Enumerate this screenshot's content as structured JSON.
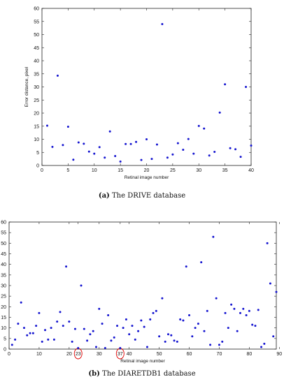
{
  "captions": [
    {
      "label": "(a)",
      "text": "The DRIVE database"
    },
    {
      "label": "(b)",
      "text": "The DIARETDB1 database"
    }
  ],
  "chart_data": [
    {
      "type": "scatter",
      "xlabel": "Retinal image number",
      "ylabel": "Error distance, pixel",
      "xlim": [
        0,
        40
      ],
      "ylim": [
        0,
        60
      ],
      "xticks": [
        0,
        5,
        10,
        15,
        20,
        25,
        30,
        35,
        40
      ],
      "yticks": [
        0,
        5,
        10,
        15,
        20,
        25,
        30,
        35,
        40,
        45,
        50,
        55,
        60
      ],
      "grid": false,
      "marker_color": "#1515d0",
      "x": [
        1,
        2,
        3,
        4,
        5,
        6,
        7,
        8,
        9,
        10,
        11,
        12,
        13,
        14,
        15,
        16,
        17,
        18,
        19,
        20,
        21,
        22,
        23,
        24,
        25,
        26,
        27,
        28,
        29,
        30,
        31,
        32,
        33,
        34,
        35,
        36,
        37,
        38,
        39,
        40
      ],
      "y": [
        15.2,
        7.1,
        34.3,
        7.8,
        14.8,
        2.2,
        8.8,
        8.3,
        5.3,
        4.5,
        7.0,
        3.0,
        13.0,
        3.6,
        1.5,
        8.2,
        8.2,
        9.0,
        2.1,
        10.0,
        2.5,
        8.0,
        54.0,
        3.0,
        4.2,
        8.5,
        6.0,
        10.1,
        4.5,
        15.1,
        14.1,
        3.8,
        5.2,
        20.2,
        31.0,
        6.6,
        6.2,
        3.3,
        30.0,
        7.6
      ]
    },
    {
      "type": "scatter",
      "xlabel": "Retinal image number",
      "ylabel": "Error distance, pixel",
      "xlim": [
        0,
        89
      ],
      "ylim": [
        0,
        60
      ],
      "xticks": [
        0,
        10,
        20,
        23,
        30,
        37,
        40,
        50,
        60,
        70,
        80,
        90
      ],
      "yticks": [
        0,
        5,
        10,
        15,
        20,
        25,
        30,
        35,
        40,
        45,
        50,
        55,
        60
      ],
      "highlighted_ticks": [
        23,
        37
      ],
      "highlight_color": "#e00000",
      "grid": false,
      "marker_color": "#1515d0",
      "x": [
        1,
        2,
        3,
        4,
        5,
        6,
        7,
        8,
        9,
        10,
        11,
        12,
        13,
        14,
        15,
        16,
        17,
        18,
        19,
        20,
        21,
        22,
        23,
        24,
        25,
        26,
        27,
        28,
        29,
        30,
        31,
        32,
        33,
        34,
        35,
        36,
        37,
        38,
        39,
        40,
        41,
        42,
        43,
        44,
        45,
        46,
        47,
        48,
        49,
        50,
        51,
        52,
        53,
        54,
        55,
        56,
        57,
        58,
        59,
        60,
        61,
        62,
        63,
        64,
        65,
        66,
        67,
        68,
        69,
        70,
        71,
        72,
        73,
        74,
        75,
        76,
        77,
        78,
        79,
        80,
        81,
        82,
        83,
        84,
        85,
        86,
        87,
        88,
        89
      ],
      "y": [
        2.0,
        4.5,
        12.0,
        22.0,
        10.0,
        6.5,
        7.5,
        7.5,
        11.0,
        17.0,
        3.5,
        9.0,
        4.5,
        10.0,
        4.5,
        13.0,
        17.5,
        11.0,
        39.0,
        13.0,
        3.5,
        9.5,
        0.5,
        30.0,
        9.5,
        4.0,
        7.0,
        8.5,
        1.0,
        19.0,
        12.0,
        0.5,
        16.0,
        4.0,
        5.5,
        11.0,
        0.5,
        10.0,
        14.0,
        7.0,
        11.0,
        4.5,
        8.5,
        13.5,
        10.5,
        1.0,
        14.0,
        17.0,
        18.0,
        6.0,
        24.0,
        3.5,
        7.0,
        6.5,
        4.0,
        3.5,
        14.0,
        13.5,
        39.0,
        16.0,
        6.0,
        10.0,
        12.0,
        41.0,
        8.5,
        18.0,
        2.0,
        53.0,
        24.0,
        2.0,
        3.5,
        17.0,
        10.0,
        21.0,
        19.0,
        8.5,
        17.0,
        19.0,
        16.0,
        18.0,
        11.5,
        11.0,
        18.5,
        1.0,
        2.5,
        50.0,
        31.0,
        6.0,
        27.0
      ]
    }
  ]
}
